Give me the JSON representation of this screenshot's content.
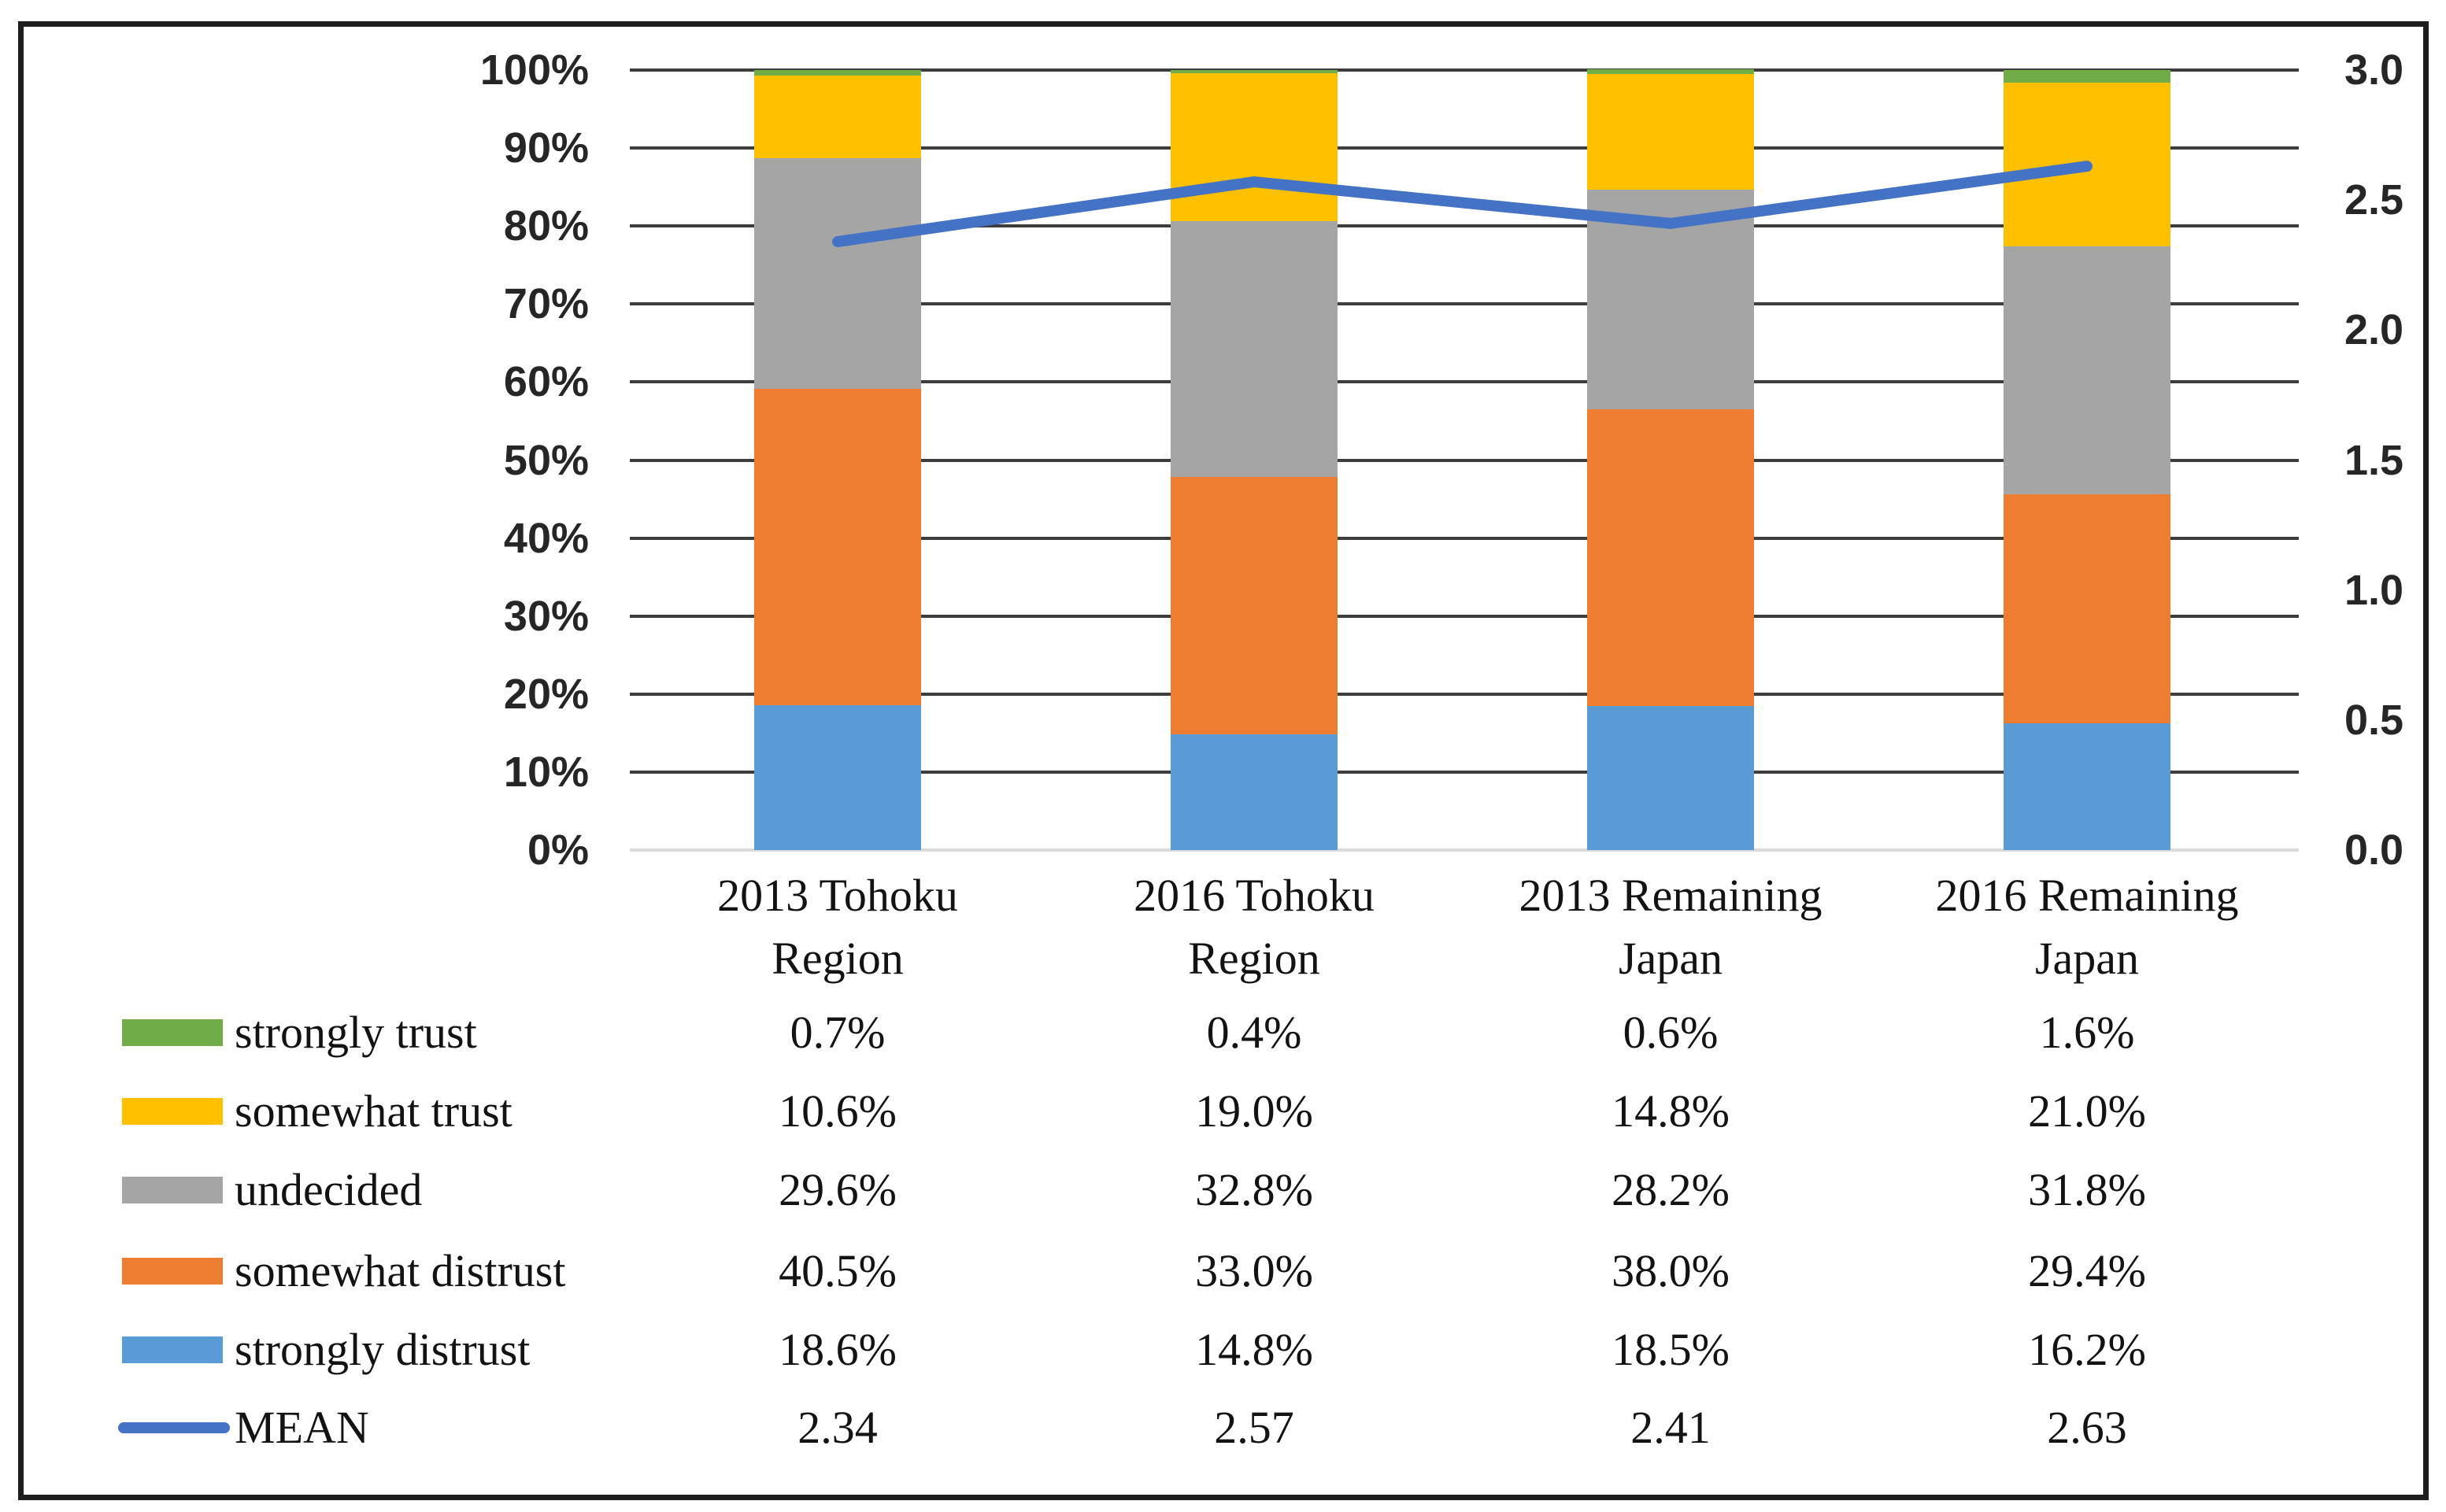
{
  "figure": {
    "background": "#ffffff",
    "border_color": "#1e1e1e"
  },
  "chart_data": {
    "type": "bar",
    "subtype": "100%-stacked-column-with-line-overlay",
    "title": "",
    "categories": [
      "2013 Tohoku Region",
      "2016 Tohoku Region",
      "2013 Remaining Japan",
      "2016 Remaining Japan"
    ],
    "series": [
      {
        "name": "strongly trust",
        "color": "#70AD47",
        "values": [
          0.7,
          0.4,
          0.6,
          1.6
        ],
        "labels": [
          "0.7%",
          "0.4%",
          "0.6%",
          "1.6%"
        ]
      },
      {
        "name": "somewhat trust",
        "color": "#FFC000",
        "values": [
          10.6,
          19.0,
          14.8,
          21.0
        ],
        "labels": [
          "10.6%",
          "19.0%",
          "14.8%",
          "21.0%"
        ]
      },
      {
        "name": "undecided",
        "color": "#A5A5A5",
        "values": [
          29.6,
          32.8,
          28.2,
          31.8
        ],
        "labels": [
          "29.6%",
          "32.8%",
          "28.2%",
          "31.8%"
        ]
      },
      {
        "name": "somewhat distrust",
        "color": "#ED7D31",
        "values": [
          40.5,
          33.0,
          38.0,
          29.4
        ],
        "labels": [
          "40.5%",
          "33.0%",
          "38.0%",
          "29.4%"
        ]
      },
      {
        "name": "strongly distrust",
        "color": "#5B9BD5",
        "values": [
          18.6,
          14.8,
          18.5,
          16.2
        ],
        "labels": [
          "18.6%",
          "14.8%",
          "18.5%",
          "16.2%"
        ]
      }
    ],
    "stack_order_bottom_to_top": [
      "strongly distrust",
      "somewhat distrust",
      "undecided",
      "somewhat trust",
      "strongly trust"
    ],
    "line_series": {
      "name": "MEAN",
      "color": "#4472C4",
      "values": [
        2.34,
        2.57,
        2.41,
        2.63
      ],
      "labels": [
        "2.34",
        "2.57",
        "2.41",
        "2.63"
      ]
    },
    "left_axis": {
      "min": 0,
      "max": 100,
      "tick_labels": [
        "0%",
        "10%",
        "20%",
        "30%",
        "40%",
        "50%",
        "60%",
        "70%",
        "80%",
        "90%",
        "100%"
      ]
    },
    "right_axis": {
      "min": 0.0,
      "max": 3.0,
      "tick_labels": [
        "0.0",
        "0.5",
        "1.0",
        "1.5",
        "2.0",
        "2.5",
        "3.0"
      ]
    },
    "grid": {
      "show": true,
      "color": "#3D3D3D",
      "baseline_color": "#D9D9D9"
    },
    "legend_position": "bottom-table"
  }
}
